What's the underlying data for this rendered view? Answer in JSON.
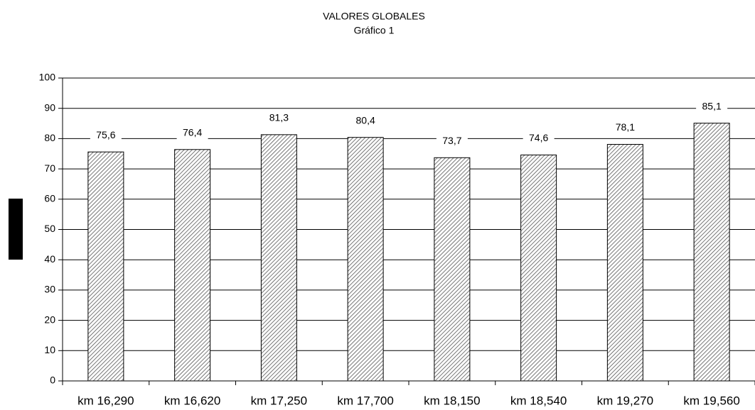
{
  "chart_data": {
    "type": "bar",
    "title": "VALORES GLOBALES",
    "subtitle": "Gráfico 1",
    "categories": [
      "km 16,290",
      "km 16,620",
      "km 17,250",
      "km 17,700",
      "km 18,150",
      "km 18,540",
      "km 19,270",
      "km 19,560"
    ],
    "values": [
      75.6,
      76.4,
      81.3,
      80.4,
      73.7,
      74.6,
      78.1,
      85.1
    ],
    "value_labels": [
      "75,6",
      "76,4",
      "81,3",
      "80,4",
      "73,7",
      "74,6",
      "78,1",
      "85,1"
    ],
    "color": "#555555",
    "ylim": [
      0,
      100
    ],
    "yticks": [
      0,
      10,
      20,
      30,
      40,
      50,
      60,
      70,
      80,
      90,
      100
    ],
    "grid": true
  }
}
